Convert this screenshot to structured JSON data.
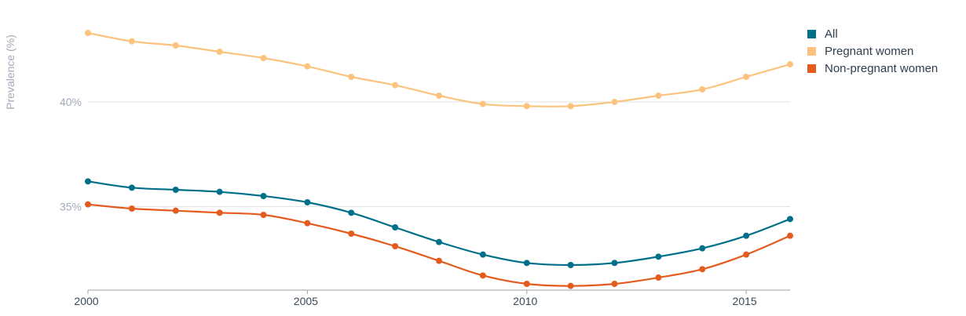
{
  "chart_data": {
    "type": "line",
    "ylabel": "Prevalence (%)",
    "x": [
      2000,
      2001,
      2002,
      2003,
      2004,
      2005,
      2006,
      2007,
      2008,
      2009,
      2010,
      2011,
      2012,
      2013,
      2014,
      2015,
      2016
    ],
    "xticks": [
      2000,
      2005,
      2010,
      2015
    ],
    "xtick_labels": [
      "2000",
      "2005",
      "2010",
      "2015"
    ],
    "xlim": [
      2000,
      2016
    ],
    "yticks": [
      35,
      40
    ],
    "ytick_labels": [
      "35%",
      "40%"
    ],
    "ylim": [
      31,
      44.5
    ],
    "grid": "horizontal",
    "legend_position": "top-right",
    "series": [
      {
        "name": "All",
        "color": "#00708a",
        "values": [
          36.2,
          35.9,
          35.8,
          35.7,
          35.5,
          35.2,
          34.7,
          34.0,
          33.3,
          32.7,
          32.3,
          32.2,
          32.3,
          32.6,
          33.0,
          33.6,
          34.4
        ]
      },
      {
        "name": "Pregnant women",
        "color": "#fbc37e",
        "values": [
          43.3,
          42.9,
          42.7,
          42.4,
          42.1,
          41.7,
          41.2,
          40.8,
          40.3,
          39.9,
          39.8,
          39.8,
          40.0,
          40.3,
          40.6,
          41.2,
          41.8
        ]
      },
      {
        "name": "Non-pregnant women",
        "color": "#e45b1e",
        "values": [
          35.1,
          34.9,
          34.8,
          34.7,
          34.6,
          34.2,
          33.7,
          33.1,
          32.4,
          31.7,
          31.3,
          31.2,
          31.3,
          31.6,
          32.0,
          32.7,
          33.6
        ]
      }
    ]
  }
}
